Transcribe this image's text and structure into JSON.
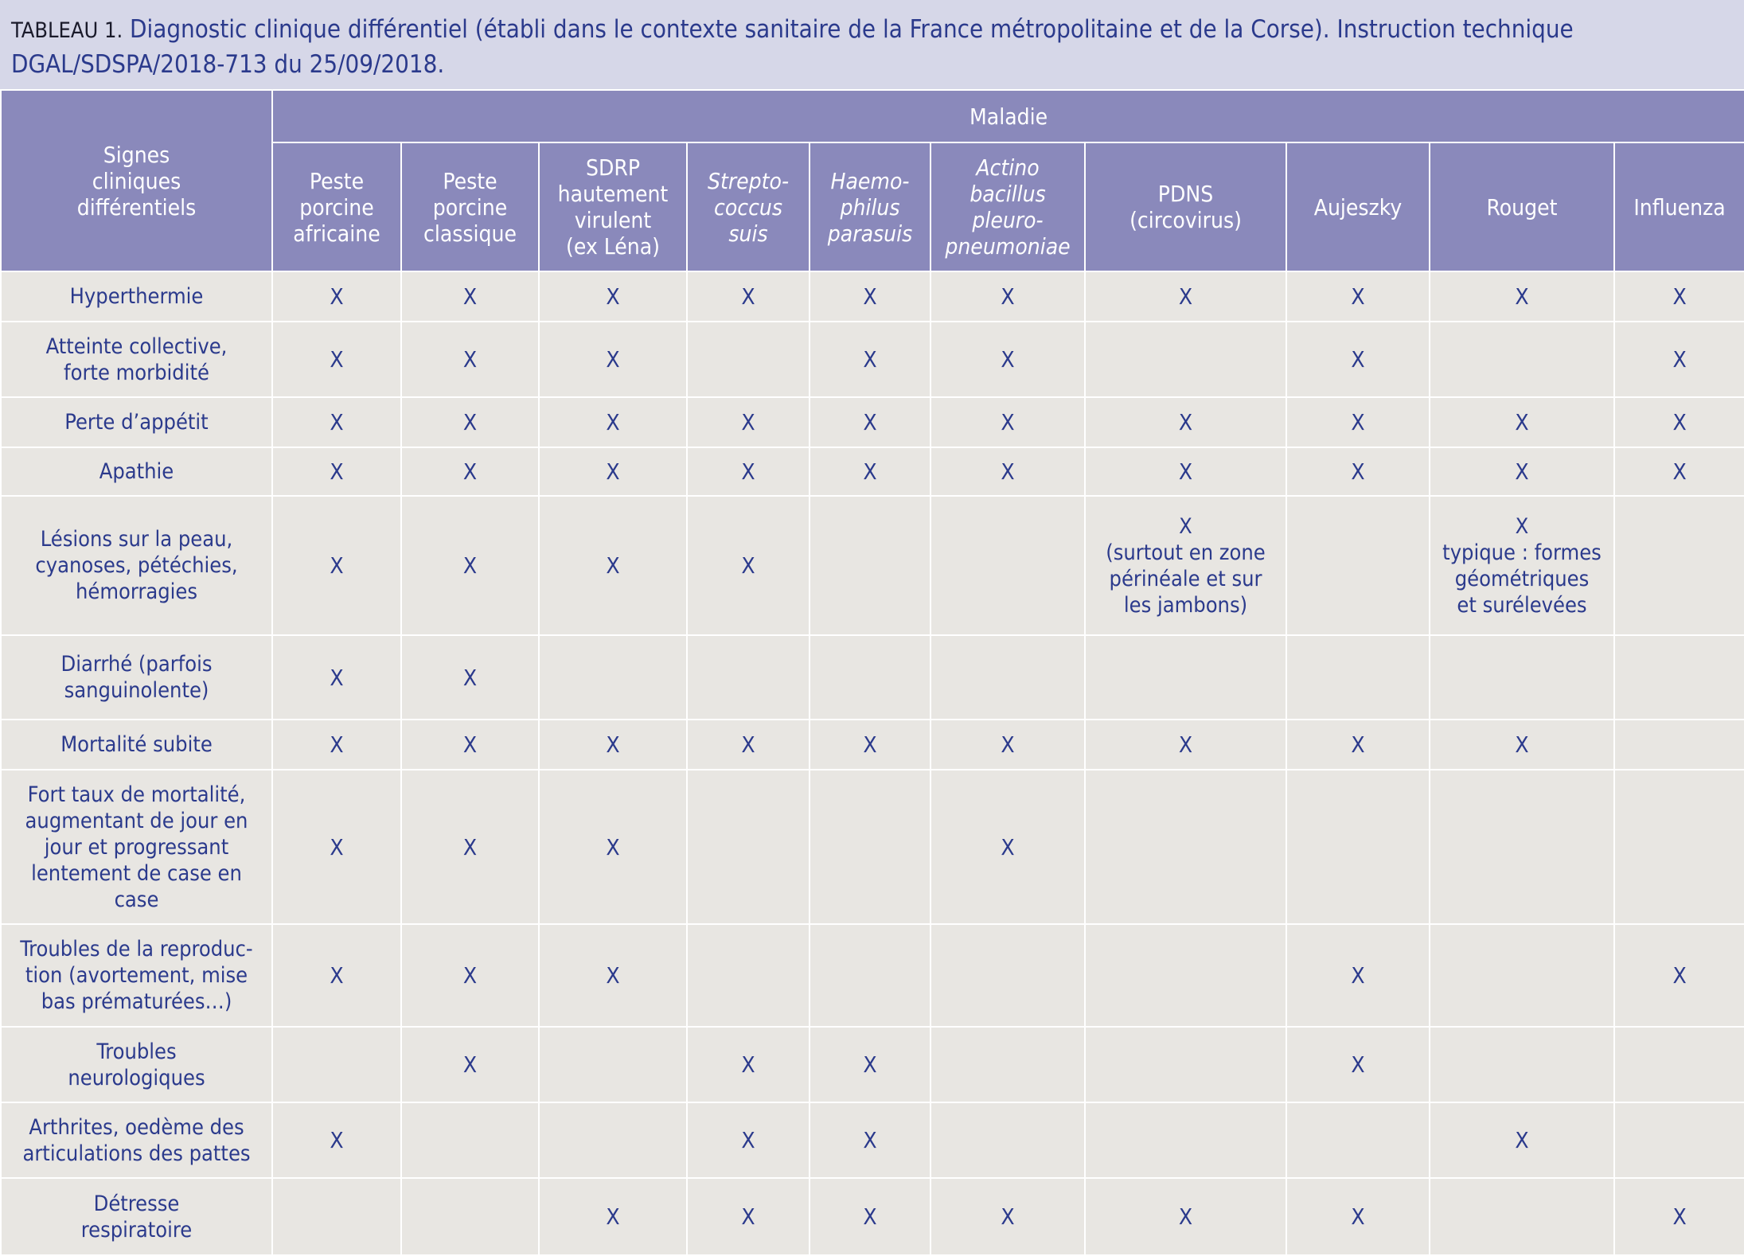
{
  "caption": {
    "label": "TABLEAU 1.",
    "title": "Diagnostic clinique différentiel (établi dans le contexte sanitaire de la France métropolitaine et de la Corse). Instruction technique DGAL/SDSPA/2018-713 du 25/09/2018."
  },
  "table": {
    "row_header": "Signes\ncliniques\ndifférentiels",
    "group_header": "Maladie",
    "columns": [
      {
        "label": "Peste\nporcine\nafricaine",
        "italic": false
      },
      {
        "label": "Peste\nporcine\nclassique",
        "italic": false
      },
      {
        "label": "SDRP\nhautement\nvirulent\n(ex Léna)",
        "italic": false
      },
      {
        "label": "Strepto-\ncoccus\nsuis",
        "italic": true
      },
      {
        "label": "Haemo-\nphilus\nparasuis",
        "italic": true
      },
      {
        "label": "Actino\nbacillus\npleuro-\npneumoniae",
        "italic": true
      },
      {
        "label": "PDNS\n(circovirus)",
        "italic": false
      },
      {
        "label": "Aujeszky",
        "italic": false
      },
      {
        "label": "Rouget",
        "italic": false
      },
      {
        "label": "Influenza",
        "italic": false
      }
    ],
    "rows": [
      {
        "label": "Hyperthermie",
        "cells": [
          "X",
          "X",
          "X",
          "X",
          "X",
          "X",
          "X",
          "X",
          "X",
          "X"
        ]
      },
      {
        "label": "Atteinte collective,\nforte morbidité",
        "cells": [
          "X",
          "X",
          "X",
          null,
          "X",
          "X",
          null,
          "X",
          null,
          "X"
        ]
      },
      {
        "label": "Perte d’appétit",
        "cells": [
          "X",
          "X",
          "X",
          "X",
          "X",
          "X",
          "X",
          "X",
          "X",
          "X"
        ]
      },
      {
        "label": "Apathie",
        "cells": [
          "X",
          "X",
          "X",
          "X",
          "X",
          "X",
          "X",
          "X",
          "X",
          "X"
        ]
      },
      {
        "label": "Lésions sur la peau,\ncyanoses, pétéchies,\nhémorragies",
        "cells": [
          "X",
          "X",
          "X",
          "X",
          null,
          null,
          "X\n(surtout en zone\npérinéale et sur\nles jambons)",
          null,
          "X\ntypique : formes\ngéométriques\net surélevées",
          null
        ]
      },
      {
        "label": "Diarrhé (parfois\nsanguinolente)",
        "cells": [
          "X",
          "X",
          null,
          null,
          null,
          null,
          null,
          null,
          null,
          null
        ]
      },
      {
        "label": "Mortalité subite",
        "cells": [
          "X",
          "X",
          "X",
          "X",
          "X",
          "X",
          "X",
          "X",
          "X",
          null
        ]
      },
      {
        "label": "Fort taux de mortalité,\naugmentant de jour en\njour et progressant\nlentement de case en\ncase",
        "cells": [
          "X",
          "X",
          "X",
          null,
          null,
          "X",
          null,
          null,
          null,
          null
        ]
      },
      {
        "label": "Troubles de la reproduc-\ntion (avortement, mise\nbas prématurées…)",
        "cells": [
          "X",
          "X",
          "X",
          null,
          null,
          null,
          null,
          "X",
          null,
          "X"
        ]
      },
      {
        "label": "Troubles\nneurologiques",
        "cells": [
          null,
          "X",
          null,
          "X",
          "X",
          null,
          null,
          "X",
          null,
          null
        ]
      },
      {
        "label": "Arthrites, oedème des\narticulations des pattes",
        "cells": [
          "X",
          null,
          null,
          "X",
          "X",
          null,
          null,
          null,
          "X",
          null
        ]
      },
      {
        "label": "Détresse\nrespiratoire",
        "cells": [
          null,
          null,
          "X",
          "X",
          "X",
          "X",
          "X",
          "X",
          null,
          "X"
        ]
      }
    ]
  }
}
